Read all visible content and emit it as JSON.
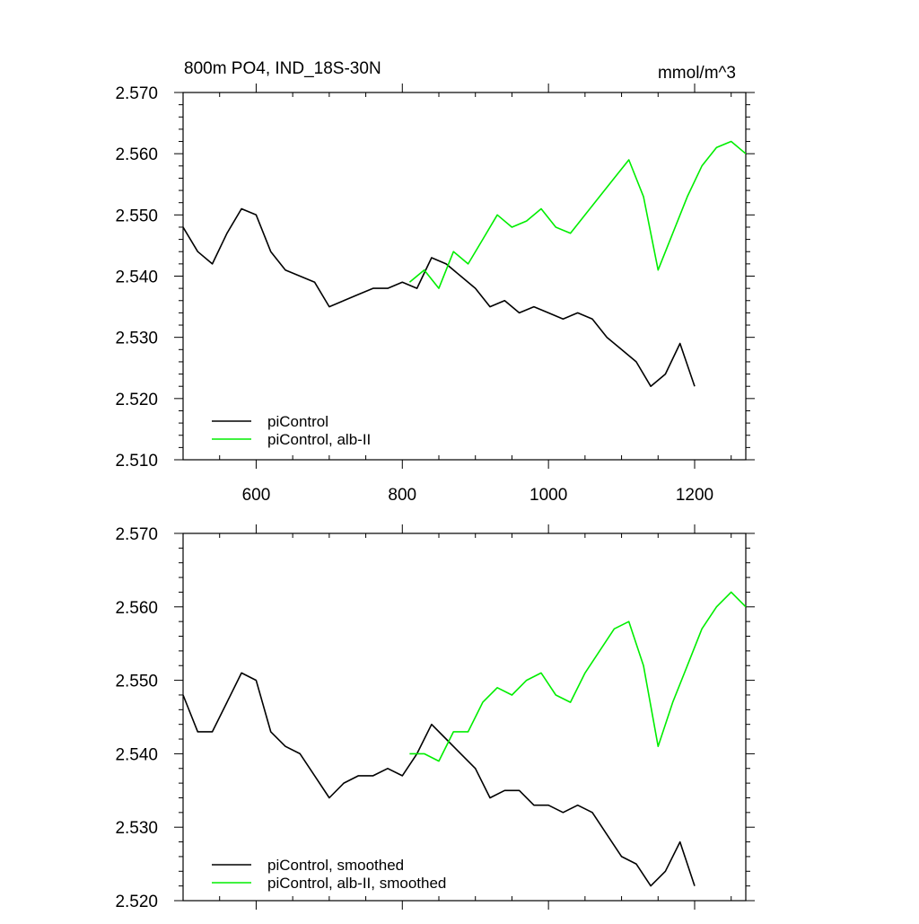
{
  "colors": {
    "control": "#000000",
    "alb": "#00ee00",
    "axis": "#000000",
    "background": "#ffffff"
  },
  "chart_data": [
    {
      "type": "line",
      "title": "800m PO4, IND_18S-30N",
      "units": "mmol/m^3",
      "xlim": [
        500,
        1270
      ],
      "ylim": [
        2.51,
        2.57
      ],
      "xticks": [
        600,
        800,
        1000,
        1200
      ],
      "xtick_labels": [
        "600",
        "800",
        "1000",
        "1200"
      ],
      "yticks": [
        2.51,
        2.52,
        2.53,
        2.54,
        2.55,
        2.56,
        2.57
      ],
      "ytick_labels": [
        "2.510",
        "2.520",
        "2.530",
        "2.540",
        "2.550",
        "2.560",
        "2.570"
      ],
      "legend_position": "bottom-left",
      "series": [
        {
          "name": "piControl",
          "color": "#000000",
          "x": [
            500,
            520,
            540,
            560,
            580,
            600,
            620,
            640,
            660,
            680,
            700,
            720,
            740,
            760,
            780,
            800,
            820,
            840,
            860,
            880,
            900,
            920,
            940,
            960,
            980,
            1000,
            1020,
            1040,
            1060,
            1080,
            1100,
            1120,
            1140,
            1160,
            1180,
            1200
          ],
          "y": [
            2.548,
            2.544,
            2.542,
            2.547,
            2.551,
            2.55,
            2.544,
            2.541,
            2.54,
            2.539,
            2.535,
            2.536,
            2.537,
            2.538,
            2.538,
            2.539,
            2.538,
            2.543,
            2.542,
            2.54,
            2.538,
            2.535,
            2.536,
            2.534,
            2.535,
            2.534,
            2.533,
            2.534,
            2.533,
            2.53,
            2.528,
            2.526,
            2.522,
            2.524,
            2.529,
            2.522
          ]
        },
        {
          "name": "piControl, alb-II",
          "color": "#00ee00",
          "x": [
            810,
            830,
            850,
            870,
            890,
            910,
            930,
            950,
            970,
            990,
            1010,
            1030,
            1050,
            1070,
            1090,
            1110,
            1130,
            1150,
            1170,
            1190,
            1210,
            1230,
            1250,
            1270
          ],
          "y": [
            2.539,
            2.541,
            2.538,
            2.544,
            2.542,
            2.546,
            2.55,
            2.548,
            2.549,
            2.551,
            2.548,
            2.547,
            2.55,
            2.553,
            2.556,
            2.559,
            2.553,
            2.541,
            2.547,
            2.553,
            2.558,
            2.561,
            2.562,
            2.56
          ]
        }
      ]
    },
    {
      "type": "line",
      "xlim": [
        500,
        1270
      ],
      "ylim": [
        2.52,
        2.57
      ],
      "xticks": [
        600,
        800,
        1000,
        1200
      ],
      "yticks": [
        2.52,
        2.53,
        2.54,
        2.55,
        2.56,
        2.57
      ],
      "ytick_labels": [
        "2.520",
        "2.530",
        "2.540",
        "2.550",
        "2.560",
        "2.570"
      ],
      "legend_position": "bottom-left",
      "series": [
        {
          "name": "piControl, smoothed",
          "color": "#000000",
          "x": [
            500,
            520,
            540,
            560,
            580,
            600,
            620,
            640,
            660,
            680,
            700,
            720,
            740,
            760,
            780,
            800,
            820,
            840,
            860,
            880,
            900,
            920,
            940,
            960,
            980,
            1000,
            1020,
            1040,
            1060,
            1080,
            1100,
            1120,
            1140,
            1160,
            1180,
            1200
          ],
          "y": [
            2.548,
            2.543,
            2.543,
            2.547,
            2.551,
            2.55,
            2.543,
            2.541,
            2.54,
            2.537,
            2.534,
            2.536,
            2.537,
            2.537,
            2.538,
            2.537,
            2.54,
            2.544,
            2.542,
            2.54,
            2.538,
            2.534,
            2.535,
            2.535,
            2.533,
            2.533,
            2.532,
            2.533,
            2.532,
            2.529,
            2.526,
            2.525,
            2.522,
            2.524,
            2.528,
            2.522
          ]
        },
        {
          "name": "piControl, alb-II, smoothed",
          "color": "#00ee00",
          "x": [
            810,
            830,
            850,
            870,
            890,
            910,
            930,
            950,
            970,
            990,
            1010,
            1030,
            1050,
            1070,
            1090,
            1110,
            1130,
            1150,
            1170,
            1190,
            1210,
            1230,
            1250,
            1270
          ],
          "y": [
            2.54,
            2.54,
            2.539,
            2.543,
            2.543,
            2.547,
            2.549,
            2.548,
            2.55,
            2.551,
            2.548,
            2.547,
            2.551,
            2.554,
            2.557,
            2.558,
            2.552,
            2.541,
            2.547,
            2.552,
            2.557,
            2.56,
            2.562,
            2.56
          ]
        }
      ]
    }
  ]
}
